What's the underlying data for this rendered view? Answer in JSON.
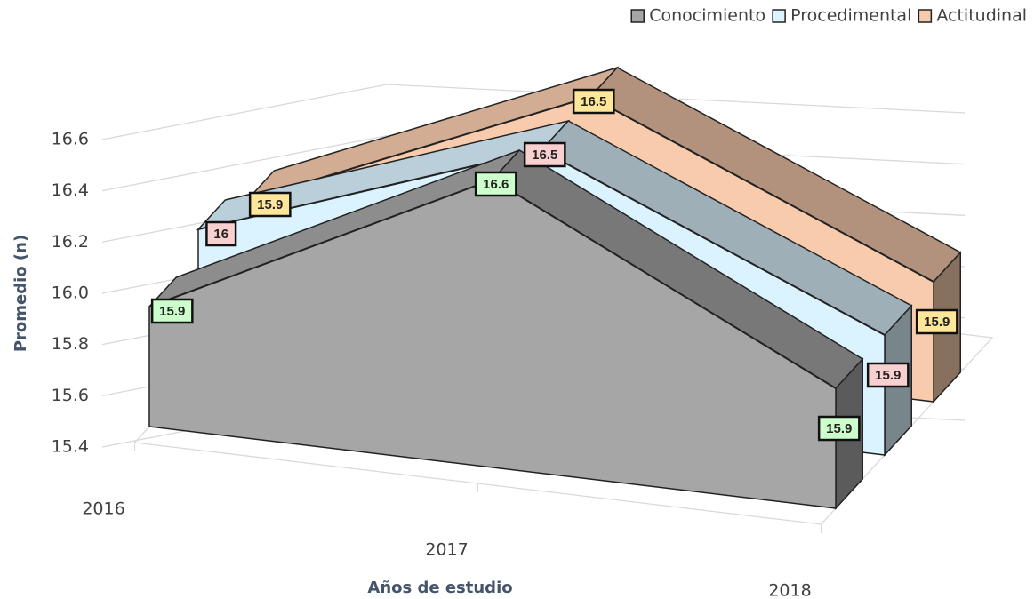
{
  "chart_data": {
    "type": "area3d",
    "x_label": "Años de estudio",
    "y_label": "Promedio (n)",
    "categories": [
      "2016",
      "2017",
      "2018"
    ],
    "series": [
      {
        "name": "Conocimiento",
        "color": "#a6a6a6",
        "label_color": "#ccffcc",
        "values": [
          15.9,
          16.6,
          15.9
        ]
      },
      {
        "name": "Procedimental",
        "color": "#dbf3ff",
        "label_color": "#f9d0d0",
        "values": [
          16,
          16.5,
          15.9
        ]
      },
      {
        "name": "Actitudinal",
        "color": "#f8cbad",
        "label_color": "#ffe699",
        "values": [
          15.9,
          16.5,
          15.9
        ]
      }
    ],
    "ylim": [
      15.4,
      16.6
    ],
    "yticks": [
      15.4,
      15.6,
      15.8,
      {
        "value": 16,
        "label": "16.0"
      },
      16.2,
      16.4,
      16.6
    ],
    "grid": true,
    "legend": "top-right"
  }
}
